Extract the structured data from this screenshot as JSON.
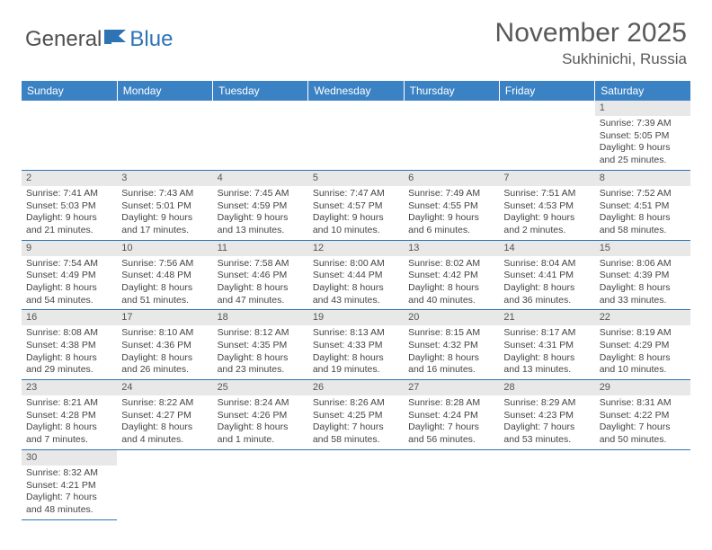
{
  "logo": {
    "word1": "General",
    "word2": "Blue"
  },
  "title": "November 2025",
  "location": "Sukhinichi, Russia",
  "colors": {
    "header_bg": "#3b82c4",
    "header_text": "#ffffff",
    "daynum_bg": "#e8e8e8",
    "border": "#2e74b5",
    "title_text": "#595959",
    "body_text": "#444444"
  },
  "weekdays": [
    "Sunday",
    "Monday",
    "Tuesday",
    "Wednesday",
    "Thursday",
    "Friday",
    "Saturday"
  ],
  "weeks": [
    [
      {
        "n": "",
        "sr": "",
        "ss": "",
        "dl": ""
      },
      {
        "n": "",
        "sr": "",
        "ss": "",
        "dl": ""
      },
      {
        "n": "",
        "sr": "",
        "ss": "",
        "dl": ""
      },
      {
        "n": "",
        "sr": "",
        "ss": "",
        "dl": ""
      },
      {
        "n": "",
        "sr": "",
        "ss": "",
        "dl": ""
      },
      {
        "n": "",
        "sr": "",
        "ss": "",
        "dl": ""
      },
      {
        "n": "1",
        "sr": "Sunrise: 7:39 AM",
        "ss": "Sunset: 5:05 PM",
        "dl": "Daylight: 9 hours and 25 minutes."
      }
    ],
    [
      {
        "n": "2",
        "sr": "Sunrise: 7:41 AM",
        "ss": "Sunset: 5:03 PM",
        "dl": "Daylight: 9 hours and 21 minutes."
      },
      {
        "n": "3",
        "sr": "Sunrise: 7:43 AM",
        "ss": "Sunset: 5:01 PM",
        "dl": "Daylight: 9 hours and 17 minutes."
      },
      {
        "n": "4",
        "sr": "Sunrise: 7:45 AM",
        "ss": "Sunset: 4:59 PM",
        "dl": "Daylight: 9 hours and 13 minutes."
      },
      {
        "n": "5",
        "sr": "Sunrise: 7:47 AM",
        "ss": "Sunset: 4:57 PM",
        "dl": "Daylight: 9 hours and 10 minutes."
      },
      {
        "n": "6",
        "sr": "Sunrise: 7:49 AM",
        "ss": "Sunset: 4:55 PM",
        "dl": "Daylight: 9 hours and 6 minutes."
      },
      {
        "n": "7",
        "sr": "Sunrise: 7:51 AM",
        "ss": "Sunset: 4:53 PM",
        "dl": "Daylight: 9 hours and 2 minutes."
      },
      {
        "n": "8",
        "sr": "Sunrise: 7:52 AM",
        "ss": "Sunset: 4:51 PM",
        "dl": "Daylight: 8 hours and 58 minutes."
      }
    ],
    [
      {
        "n": "9",
        "sr": "Sunrise: 7:54 AM",
        "ss": "Sunset: 4:49 PM",
        "dl": "Daylight: 8 hours and 54 minutes."
      },
      {
        "n": "10",
        "sr": "Sunrise: 7:56 AM",
        "ss": "Sunset: 4:48 PM",
        "dl": "Daylight: 8 hours and 51 minutes."
      },
      {
        "n": "11",
        "sr": "Sunrise: 7:58 AM",
        "ss": "Sunset: 4:46 PM",
        "dl": "Daylight: 8 hours and 47 minutes."
      },
      {
        "n": "12",
        "sr": "Sunrise: 8:00 AM",
        "ss": "Sunset: 4:44 PM",
        "dl": "Daylight: 8 hours and 43 minutes."
      },
      {
        "n": "13",
        "sr": "Sunrise: 8:02 AM",
        "ss": "Sunset: 4:42 PM",
        "dl": "Daylight: 8 hours and 40 minutes."
      },
      {
        "n": "14",
        "sr": "Sunrise: 8:04 AM",
        "ss": "Sunset: 4:41 PM",
        "dl": "Daylight: 8 hours and 36 minutes."
      },
      {
        "n": "15",
        "sr": "Sunrise: 8:06 AM",
        "ss": "Sunset: 4:39 PM",
        "dl": "Daylight: 8 hours and 33 minutes."
      }
    ],
    [
      {
        "n": "16",
        "sr": "Sunrise: 8:08 AM",
        "ss": "Sunset: 4:38 PM",
        "dl": "Daylight: 8 hours and 29 minutes."
      },
      {
        "n": "17",
        "sr": "Sunrise: 8:10 AM",
        "ss": "Sunset: 4:36 PM",
        "dl": "Daylight: 8 hours and 26 minutes."
      },
      {
        "n": "18",
        "sr": "Sunrise: 8:12 AM",
        "ss": "Sunset: 4:35 PM",
        "dl": "Daylight: 8 hours and 23 minutes."
      },
      {
        "n": "19",
        "sr": "Sunrise: 8:13 AM",
        "ss": "Sunset: 4:33 PM",
        "dl": "Daylight: 8 hours and 19 minutes."
      },
      {
        "n": "20",
        "sr": "Sunrise: 8:15 AM",
        "ss": "Sunset: 4:32 PM",
        "dl": "Daylight: 8 hours and 16 minutes."
      },
      {
        "n": "21",
        "sr": "Sunrise: 8:17 AM",
        "ss": "Sunset: 4:31 PM",
        "dl": "Daylight: 8 hours and 13 minutes."
      },
      {
        "n": "22",
        "sr": "Sunrise: 8:19 AM",
        "ss": "Sunset: 4:29 PM",
        "dl": "Daylight: 8 hours and 10 minutes."
      }
    ],
    [
      {
        "n": "23",
        "sr": "Sunrise: 8:21 AM",
        "ss": "Sunset: 4:28 PM",
        "dl": "Daylight: 8 hours and 7 minutes."
      },
      {
        "n": "24",
        "sr": "Sunrise: 8:22 AM",
        "ss": "Sunset: 4:27 PM",
        "dl": "Daylight: 8 hours and 4 minutes."
      },
      {
        "n": "25",
        "sr": "Sunrise: 8:24 AM",
        "ss": "Sunset: 4:26 PM",
        "dl": "Daylight: 8 hours and 1 minute."
      },
      {
        "n": "26",
        "sr": "Sunrise: 8:26 AM",
        "ss": "Sunset: 4:25 PM",
        "dl": "Daylight: 7 hours and 58 minutes."
      },
      {
        "n": "27",
        "sr": "Sunrise: 8:28 AM",
        "ss": "Sunset: 4:24 PM",
        "dl": "Daylight: 7 hours and 56 minutes."
      },
      {
        "n": "28",
        "sr": "Sunrise: 8:29 AM",
        "ss": "Sunset: 4:23 PM",
        "dl": "Daylight: 7 hours and 53 minutes."
      },
      {
        "n": "29",
        "sr": "Sunrise: 8:31 AM",
        "ss": "Sunset: 4:22 PM",
        "dl": "Daylight: 7 hours and 50 minutes."
      }
    ],
    [
      {
        "n": "30",
        "sr": "Sunrise: 8:32 AM",
        "ss": "Sunset: 4:21 PM",
        "dl": "Daylight: 7 hours and 48 minutes."
      },
      {
        "n": "",
        "sr": "",
        "ss": "",
        "dl": ""
      },
      {
        "n": "",
        "sr": "",
        "ss": "",
        "dl": ""
      },
      {
        "n": "",
        "sr": "",
        "ss": "",
        "dl": ""
      },
      {
        "n": "",
        "sr": "",
        "ss": "",
        "dl": ""
      },
      {
        "n": "",
        "sr": "",
        "ss": "",
        "dl": ""
      },
      {
        "n": "",
        "sr": "",
        "ss": "",
        "dl": ""
      }
    ]
  ]
}
